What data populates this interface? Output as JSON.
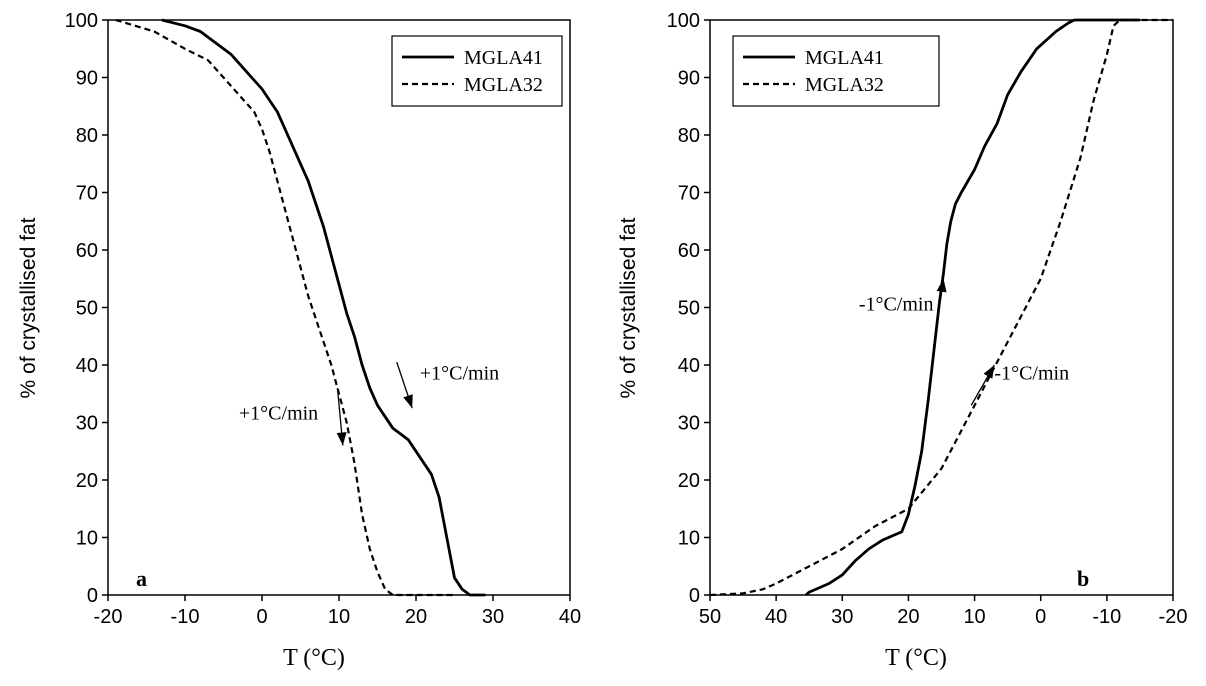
{
  "chart_data": [
    {
      "type": "line",
      "panel_label": "a",
      "xlabel": "T (°C)",
      "ylabel": "% of crystallised fat",
      "xlim": [
        -20,
        40
      ],
      "ylim": [
        0,
        100
      ],
      "x_reversed": false,
      "x_ticks": [
        "-20",
        "-10",
        "0",
        "10",
        "20",
        "30",
        "40"
      ],
      "x_tick_values": [
        -20,
        -10,
        0,
        10,
        20,
        30,
        40
      ],
      "y_ticks": [
        "0",
        "10",
        "20",
        "30",
        "40",
        "50",
        "60",
        "70",
        "80",
        "90",
        "100"
      ],
      "y_tick_values": [
        0,
        10,
        20,
        30,
        40,
        50,
        60,
        70,
        80,
        90,
        100
      ],
      "grid": false,
      "legend_position": "top-right",
      "series": [
        {
          "name": "MGLA41",
          "style": "solid",
          "x": [
            -13,
            -10,
            -8,
            -6,
            -4,
            -2,
            0,
            1,
            2,
            3,
            4,
            5,
            6,
            7,
            8,
            9,
            10,
            11,
            12,
            13,
            14,
            15,
            16,
            17,
            18,
            19,
            20,
            21,
            22,
            23,
            24,
            25,
            26,
            27,
            28,
            29
          ],
          "y": [
            100,
            99,
            98,
            96,
            94,
            91,
            88,
            86,
            84,
            81,
            78,
            75,
            72,
            68,
            64,
            59,
            54,
            49,
            45,
            40,
            36,
            33,
            31,
            29,
            28,
            27,
            25,
            23,
            21,
            17,
            10,
            3,
            1,
            0,
            0,
            0
          ]
        },
        {
          "name": "MGLA32",
          "style": "dashed",
          "x": [
            -19,
            -14,
            -10,
            -7,
            -5,
            -3,
            -1,
            0,
            1,
            2,
            3,
            4,
            5,
            6,
            7,
            8,
            9,
            10,
            11,
            12,
            13,
            14,
            15,
            16,
            17,
            18,
            20,
            25
          ],
          "y": [
            100,
            98,
            95,
            93,
            90,
            87,
            84,
            81,
            77,
            72,
            67,
            62,
            57,
            52,
            48,
            44,
            40,
            35,
            30,
            23,
            14,
            8,
            4,
            1,
            0,
            0,
            0,
            0
          ]
        }
      ],
      "annotations": [
        {
          "text": "+1°C/min",
          "x": 20.5,
          "y": 37.5,
          "arrow_from": [
            17.5,
            40.5
          ],
          "arrow_to": [
            19.5,
            32.5
          ]
        },
        {
          "text": "+1°C/min",
          "x": -3.0,
          "y": 30.5,
          "arrow_from": [
            9.8,
            36.0
          ],
          "arrow_to": [
            10.5,
            26.0
          ]
        }
      ]
    },
    {
      "type": "line",
      "panel_label": "b",
      "xlabel": "T (°C)",
      "ylabel": "% of crystallised fat",
      "xlim": [
        50,
        -20
      ],
      "ylim": [
        0,
        100
      ],
      "x_reversed": true,
      "x_ticks": [
        "50",
        "40",
        "30",
        "20",
        "10",
        "0",
        "-10",
        "-20"
      ],
      "x_tick_values": [
        50,
        40,
        30,
        20,
        10,
        0,
        -10,
        -20
      ],
      "y_ticks": [
        "0",
        "10",
        "20",
        "30",
        "40",
        "50",
        "60",
        "70",
        "80",
        "90",
        "100"
      ],
      "y_tick_values": [
        0,
        10,
        20,
        30,
        40,
        50,
        60,
        70,
        80,
        90,
        100
      ],
      "grid": false,
      "legend_position": "top-left",
      "series": [
        {
          "name": "MGLA41",
          "style": "solid",
          "x": [
            38,
            35,
            32,
            30,
            28,
            26,
            24,
            22,
            21,
            20,
            19,
            18,
            17,
            16,
            15,
            14,
            13,
            12,
            11,
            10,
            8,
            6,
            4,
            2,
            0,
            -2,
            -4,
            -5,
            -6,
            -10,
            -15
          ],
          "y": [
            0,
            0.5,
            2,
            3.5,
            6,
            8,
            9.5,
            10.5,
            11,
            14,
            19,
            25,
            34,
            44,
            51,
            56,
            61,
            65,
            68,
            70,
            74,
            78,
            82,
            87,
            91,
            95,
            98,
            99.5,
            100,
            100,
            100
          ],
          "x_scaled": [
            35.5,
            35,
            32,
            30,
            28,
            26,
            24,
            22,
            21,
            20,
            19,
            18,
            17,
            16,
            15.3,
            14.7,
            14.2,
            13.6,
            12.9,
            12,
            10,
            8.5,
            6.6,
            5,
            3,
            0.6,
            -2.3,
            -4.2,
            -5.1,
            -10,
            -15
          ]
        },
        {
          "name": "MGLA32",
          "style": "dashed",
          "x": [
            50,
            45,
            42,
            40,
            35,
            30,
            25,
            20,
            15,
            10,
            5,
            0,
            -3,
            -6,
            -8,
            -10,
            -11,
            -12,
            -15,
            -20
          ],
          "y": [
            0,
            0.3,
            1,
            2,
            5,
            8,
            12,
            15,
            22,
            33,
            44,
            55,
            65,
            76,
            86,
            94,
            99,
            100,
            100,
            100
          ]
        }
      ],
      "annotations": [
        {
          "text": "-1°C/min",
          "x": 27.5,
          "y": 49.5,
          "arrow_from": [
            16.2,
            43.0
          ],
          "arrow_to": [
            14.7,
            55.0
          ]
        },
        {
          "text": "-1°C/min",
          "x": 7.0,
          "y": 37.5,
          "arrow_from": [
            10.5,
            33.0
          ],
          "arrow_to": [
            7.0,
            40.0
          ]
        }
      ]
    }
  ]
}
